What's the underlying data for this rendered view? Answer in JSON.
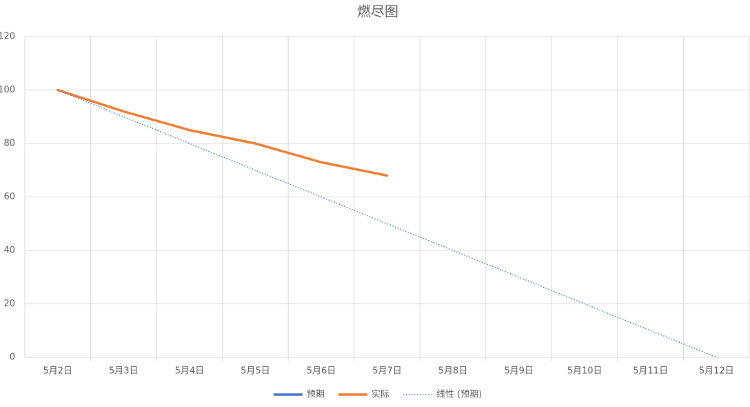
{
  "chart_data": {
    "type": "line",
    "title": "燃尽图",
    "categories": [
      "5月2日",
      "5月3日",
      "5月4日",
      "5月5日",
      "5月6日",
      "5月7日",
      "5月8日",
      "5月9日",
      "5月10日",
      "5月11日",
      "5月12日"
    ],
    "series": [
      {
        "name": "预期",
        "color": "#4472c4",
        "values": [
          null,
          null,
          null,
          null,
          null,
          null,
          null,
          null,
          null,
          null,
          null
        ]
      },
      {
        "name": "实际",
        "color": "#ed7d31",
        "values": [
          100,
          92,
          85,
          80,
          73,
          68,
          null,
          null,
          null,
          null,
          null
        ]
      },
      {
        "name": "线性 (预期)",
        "color": "#4472c4",
        "dotted": true,
        "values": [
          100,
          90,
          80,
          70,
          60,
          50,
          40,
          30,
          20,
          10,
          0
        ]
      }
    ],
    "ylim": [
      0,
      120
    ],
    "yticks": [
      0,
      20,
      40,
      60,
      80,
      100,
      120
    ],
    "grid": true,
    "legend": "bottom"
  }
}
